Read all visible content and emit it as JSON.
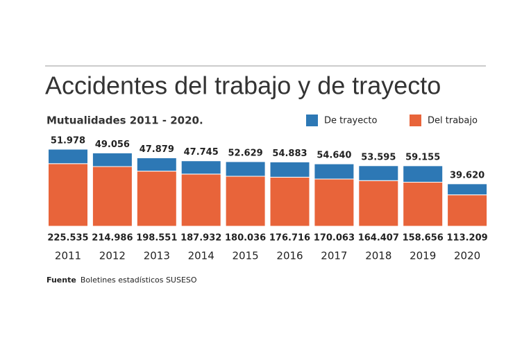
{
  "chart_data": {
    "type": "stacked-bar",
    "title": "Accidentes del trabajo y de trayecto",
    "subtitle": "Mutualidades 2011 - 2020.",
    "categories": [
      "2011",
      "2012",
      "2013",
      "2014",
      "2015",
      "2016",
      "2017",
      "2018",
      "2019",
      "2020"
    ],
    "legend": "top-right",
    "series": [
      {
        "name": "Del trabajo",
        "color": "#e8643a",
        "values": [
          225535,
          214986,
          198551,
          187932,
          180036,
          176716,
          170063,
          164407,
          158656,
          113209
        ],
        "value_labels": [
          "225.535",
          "214.986",
          "198.551",
          "187.932",
          "180.036",
          "176.716",
          "170.063",
          "164.407",
          "158.656",
          "113.209"
        ]
      },
      {
        "name": "De trayecto",
        "color": "#2d78b5",
        "values": [
          51978,
          49056,
          47879,
          47745,
          52629,
          54883,
          54640,
          53595,
          59155,
          39620
        ],
        "value_labels": [
          "51.978",
          "49.056",
          "47.879",
          "47.745",
          "52.629",
          "54.883",
          "54.640",
          "53.595",
          "59.155",
          "39.620"
        ]
      }
    ],
    "source": {
      "label": "Fuente",
      "text": "Boletines estadísticos SUSESO"
    }
  }
}
